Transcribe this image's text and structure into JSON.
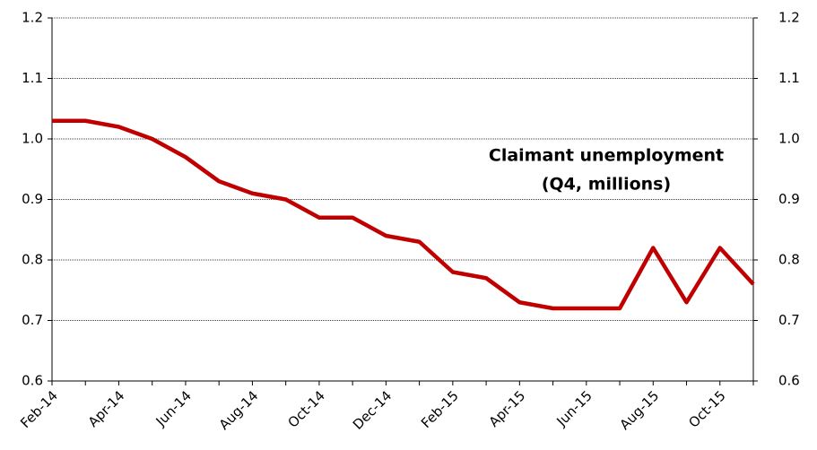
{
  "chart_data": {
    "type": "line",
    "categories": [
      "Feb-14",
      null,
      "Apr-14",
      null,
      "Jun-14",
      null,
      "Aug-14",
      null,
      "Oct-14",
      null,
      "Dec-14",
      null,
      "Feb-15",
      null,
      "Apr-15",
      null,
      "Jun-15",
      null,
      "Aug-15",
      null,
      "Oct-15",
      null
    ],
    "series": [
      {
        "name": "Claimant unemployment",
        "color": "#c00000",
        "values": [
          1.03,
          1.03,
          1.02,
          1.0,
          0.97,
          0.93,
          0.91,
          0.9,
          0.87,
          0.87,
          0.84,
          0.83,
          0.78,
          0.77,
          0.73,
          0.72,
          0.72,
          0.72,
          0.82,
          0.73,
          0.82,
          0.76
        ]
      }
    ],
    "ylim": [
      0.6,
      1.2
    ],
    "yticks": [
      0.6,
      0.7,
      0.8,
      0.9,
      {
        "value": 1.0,
        "label": "1.0"
      },
      1.1,
      1.2
    ],
    "y2lim": [
      0.6,
      1.2
    ],
    "y2ticks": [
      0.6,
      0.7,
      0.8,
      0.9,
      {
        "value": 1.0,
        "label": "1.0"
      },
      1.1,
      1.2
    ],
    "grid": true,
    "annotation": [
      "Claimant unemployment",
      "(Q4, millions)"
    ]
  }
}
